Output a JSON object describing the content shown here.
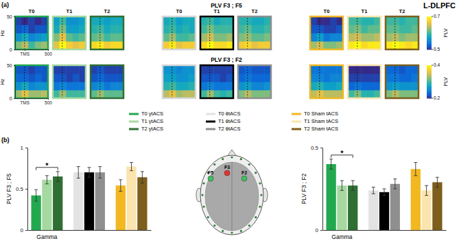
{
  "figure": {
    "title": "L-DLPFC",
    "panels": [
      "(a)",
      "(b)"
    ]
  },
  "chart_data": [
    {
      "type": "heatmap",
      "title": "PLV F3 ; F5",
      "ylabel": "Hz",
      "xlim": [
        -200,
        500
      ],
      "xticks": [
        {
          "value": 0,
          "label": "TMS"
        },
        500
      ],
      "ylim": [
        0,
        50
      ],
      "yticks": [
        0,
        50
      ],
      "colorbar": {
        "label": "PLV",
        "range": [
          0.5,
          0.7
        ],
        "ticks": [
          0.5,
          0.7
        ]
      },
      "maps": [
        {
          "label": "T0",
          "color": "#22a94f",
          "z": [
            [
              0.62,
              0.64,
              0.6,
              0.62,
              0.63
            ],
            [
              0.56,
              0.58,
              0.55,
              0.56,
              0.57
            ],
            [
              0.52,
              0.53,
              0.51,
              0.52,
              0.52
            ],
            [
              0.51,
              0.5,
              0.51,
              0.5,
              0.51
            ]
          ]
        },
        {
          "label": "T1",
          "color": "#a6d9a0",
          "z": [
            [
              0.66,
              0.7,
              0.67,
              0.66,
              0.67
            ],
            [
              0.62,
              0.66,
              0.61,
              0.6,
              0.61
            ],
            [
              0.58,
              0.62,
              0.57,
              0.57,
              0.58
            ],
            [
              0.57,
              0.6,
              0.56,
              0.56,
              0.57
            ]
          ]
        },
        {
          "label": "T2",
          "color": "#2f6f33",
          "z": [
            [
              0.68,
              0.69,
              0.67,
              0.68,
              0.68
            ],
            [
              0.61,
              0.62,
              0.6,
              0.61,
              0.61
            ],
            [
              0.59,
              0.6,
              0.58,
              0.59,
              0.59
            ],
            [
              0.58,
              0.58,
              0.57,
              0.58,
              0.58
            ]
          ]
        },
        {
          "label": "T0",
          "color": "#d6d6d6",
          "z": [
            [
              0.67,
              0.69,
              0.66,
              0.67,
              0.67
            ],
            [
              0.61,
              0.63,
              0.6,
              0.6,
              0.61
            ],
            [
              0.59,
              0.6,
              0.58,
              0.59,
              0.58
            ],
            [
              0.58,
              0.59,
              0.57,
              0.58,
              0.58
            ]
          ]
        },
        {
          "label": "T1",
          "color": "#000000",
          "z": [
            [
              0.68,
              0.7,
              0.68,
              0.68,
              0.69
            ],
            [
              0.63,
              0.65,
              0.62,
              0.62,
              0.63
            ],
            [
              0.6,
              0.62,
              0.6,
              0.6,
              0.6
            ],
            [
              0.59,
              0.6,
              0.58,
              0.59,
              0.59
            ]
          ]
        },
        {
          "label": "T2",
          "color": "#8f8f8f",
          "z": [
            [
              0.67,
              0.68,
              0.66,
              0.67,
              0.67
            ],
            [
              0.62,
              0.63,
              0.61,
              0.61,
              0.62
            ],
            [
              0.6,
              0.61,
              0.59,
              0.59,
              0.6
            ],
            [
              0.59,
              0.59,
              0.58,
              0.58,
              0.59
            ]
          ]
        },
        {
          "label": "T0",
          "color": "#f2b822",
          "z": [
            [
              0.63,
              0.65,
              0.62,
              0.62,
              0.63
            ],
            [
              0.55,
              0.57,
              0.54,
              0.55,
              0.55
            ],
            [
              0.52,
              0.52,
              0.51,
              0.51,
              0.52
            ],
            [
              0.51,
              0.5,
              0.5,
              0.51,
              0.5
            ]
          ]
        },
        {
          "label": "T1",
          "color": "#fbe4ad",
          "z": [
            [
              0.69,
              0.7,
              0.68,
              0.69,
              0.69
            ],
            [
              0.64,
              0.65,
              0.63,
              0.63,
              0.64
            ],
            [
              0.61,
              0.62,
              0.6,
              0.61,
              0.61
            ],
            [
              0.6,
              0.6,
              0.59,
              0.59,
              0.6
            ]
          ]
        },
        {
          "label": "T2",
          "color": "#7d5e1c",
          "z": [
            [
              0.69,
              0.7,
              0.69,
              0.68,
              0.69
            ],
            [
              0.63,
              0.64,
              0.62,
              0.63,
              0.63
            ],
            [
              0.61,
              0.61,
              0.6,
              0.6,
              0.61
            ],
            [
              0.6,
              0.6,
              0.59,
              0.6,
              0.6
            ]
          ]
        }
      ]
    },
    {
      "type": "heatmap",
      "title": "PLV F3 ; F2",
      "ylabel": "Hz",
      "xlim": [
        -200,
        500
      ],
      "xticks": [
        {
          "value": 0,
          "label": "TMS"
        },
        500
      ],
      "ylim": [
        0,
        50
      ],
      "yticks": [
        0,
        50
      ],
      "colorbar": {
        "label": "PLV",
        "range": [
          0.2,
          0.4
        ],
        "ticks": [
          0.2,
          0.4
        ]
      },
      "maps": [
        {
          "color": "#22a94f",
          "z": [
            [
              0.33,
              0.36,
              0.33,
              0.33,
              0.34
            ],
            [
              0.26,
              0.28,
              0.25,
              0.26,
              0.26
            ],
            [
              0.23,
              0.23,
              0.22,
              0.23,
              0.22
            ],
            [
              0.22,
              0.22,
              0.21,
              0.22,
              0.22
            ]
          ]
        },
        {
          "color": "#a6d9a0",
          "z": [
            [
              0.3,
              0.33,
              0.3,
              0.3,
              0.3
            ],
            [
              0.24,
              0.25,
              0.24,
              0.24,
              0.24
            ],
            [
              0.22,
              0.22,
              0.21,
              0.22,
              0.21
            ],
            [
              0.21,
              0.21,
              0.21,
              0.21,
              0.21
            ]
          ]
        },
        {
          "color": "#2f6f33",
          "z": [
            [
              0.31,
              0.33,
              0.31,
              0.31,
              0.31
            ],
            [
              0.25,
              0.26,
              0.24,
              0.25,
              0.25
            ],
            [
              0.22,
              0.23,
              0.22,
              0.22,
              0.22
            ],
            [
              0.21,
              0.22,
              0.21,
              0.21,
              0.21
            ]
          ]
        },
        {
          "color": "#d6d6d6",
          "z": [
            [
              0.34,
              0.36,
              0.33,
              0.34,
              0.34
            ],
            [
              0.29,
              0.3,
              0.28,
              0.28,
              0.29
            ],
            [
              0.27,
              0.27,
              0.26,
              0.26,
              0.27
            ],
            [
              0.26,
              0.26,
              0.25,
              0.26,
              0.26
            ]
          ]
        },
        {
          "color": "#000000",
          "z": [
            [
              0.3,
              0.33,
              0.3,
              0.29,
              0.3
            ],
            [
              0.24,
              0.25,
              0.24,
              0.24,
              0.24
            ],
            [
              0.22,
              0.22,
              0.22,
              0.21,
              0.22
            ],
            [
              0.21,
              0.21,
              0.21,
              0.21,
              0.21
            ]
          ]
        },
        {
          "color": "#8f8f8f",
          "z": [
            [
              0.32,
              0.34,
              0.32,
              0.32,
              0.32
            ],
            [
              0.26,
              0.27,
              0.25,
              0.25,
              0.26
            ],
            [
              0.23,
              0.24,
              0.23,
              0.23,
              0.23
            ],
            [
              0.22,
              0.23,
              0.22,
              0.22,
              0.22
            ]
          ]
        },
        {
          "color": "#f2b822",
          "z": [
            [
              0.34,
              0.36,
              0.34,
              0.34,
              0.34
            ],
            [
              0.28,
              0.29,
              0.27,
              0.27,
              0.28
            ],
            [
              0.25,
              0.25,
              0.24,
              0.25,
              0.25
            ],
            [
              0.24,
              0.24,
              0.24,
              0.24,
              0.24
            ]
          ]
        },
        {
          "color": "#fbe4ad",
          "z": [
            [
              0.3,
              0.32,
              0.29,
              0.29,
              0.3
            ],
            [
              0.23,
              0.24,
              0.23,
              0.23,
              0.23
            ],
            [
              0.21,
              0.21,
              0.21,
              0.21,
              0.21
            ],
            [
              0.2,
              0.2,
              0.2,
              0.2,
              0.2
            ]
          ]
        },
        {
          "color": "#7d5e1c",
          "z": [
            [
              0.32,
              0.34,
              0.32,
              0.32,
              0.32
            ],
            [
              0.26,
              0.27,
              0.26,
              0.26,
              0.26
            ],
            [
              0.24,
              0.24,
              0.23,
              0.23,
              0.24
            ],
            [
              0.23,
              0.23,
              0.22,
              0.23,
              0.23
            ]
          ]
        }
      ]
    },
    {
      "type": "bar",
      "ylabel": "PLV F3 ; F5",
      "categories": [
        "Gamma"
      ],
      "ylim": [
        0,
        1
      ],
      "yticks": [
        0,
        0.5,
        1
      ],
      "series": [
        {
          "name": "T0 γtACS",
          "color": "#22a94f",
          "values": [
            0.42
          ],
          "errors": [
            0.07
          ]
        },
        {
          "name": "T1 γtACS",
          "color": "#a6d9a0",
          "values": [
            0.61
          ],
          "errors": [
            0.05
          ]
        },
        {
          "name": "T2 γtACS",
          "color": "#2f6f33",
          "values": [
            0.65
          ],
          "errors": [
            0.06
          ]
        },
        {
          "name": "T0 θtACS",
          "color": "#e3e3e3",
          "values": [
            0.7
          ],
          "errors": [
            0.07
          ]
        },
        {
          "name": "T1 θtACS",
          "color": "#000000",
          "values": [
            0.7
          ],
          "errors": [
            0.06
          ]
        },
        {
          "name": "T2 θtACS",
          "color": "#8f8f8f",
          "values": [
            0.7
          ],
          "errors": [
            0.07
          ]
        },
        {
          "name": "T0 Sham tACS",
          "color": "#f2b822",
          "values": [
            0.54
          ],
          "errors": [
            0.07
          ]
        },
        {
          "name": "T1 Sham tACS",
          "color": "#fbe4ad",
          "values": [
            0.77
          ],
          "errors": [
            0.05
          ]
        },
        {
          "name": "T2 Sham tACS",
          "color": "#7d5e1c",
          "values": [
            0.64
          ],
          "errors": [
            0.07
          ]
        }
      ],
      "significance": [
        {
          "label": "*",
          "series": [
            0,
            2
          ]
        }
      ]
    },
    {
      "type": "bar",
      "ylabel": "PLV F3 ; F2",
      "categories": [
        "Gamma"
      ],
      "ylim": [
        0,
        0.5
      ],
      "yticks": [
        0,
        0.5
      ],
      "series": [
        {
          "color": "#22a94f",
          "values": [
            0.4
          ],
          "errors": [
            0.03
          ]
        },
        {
          "color": "#a6d9a0",
          "values": [
            0.27
          ],
          "errors": [
            0.03
          ]
        },
        {
          "color": "#2f6f33",
          "values": [
            0.27
          ],
          "errors": [
            0.03
          ]
        },
        {
          "color": "#e3e3e3",
          "values": [
            0.24
          ],
          "errors": [
            0.02
          ]
        },
        {
          "color": "#000000",
          "values": [
            0.23
          ],
          "errors": [
            0.02
          ]
        },
        {
          "color": "#8f8f8f",
          "values": [
            0.28
          ],
          "errors": [
            0.03
          ]
        },
        {
          "color": "#f2b822",
          "values": [
            0.37
          ],
          "errors": [
            0.04
          ]
        },
        {
          "color": "#fbe4ad",
          "values": [
            0.24
          ],
          "errors": [
            0.03
          ]
        },
        {
          "color": "#7d5e1c",
          "values": [
            0.29
          ],
          "errors": [
            0.03
          ]
        }
      ],
      "significance": [
        {
          "label": "*",
          "series": [
            0,
            2
          ]
        }
      ]
    }
  ],
  "head": {
    "electrodes": [
      {
        "label": "F3",
        "color": "#e8322b"
      },
      {
        "label": "F5",
        "color": "#3fbf5f"
      },
      {
        "label": "F2",
        "color": "#3fbf5f"
      }
    ]
  }
}
